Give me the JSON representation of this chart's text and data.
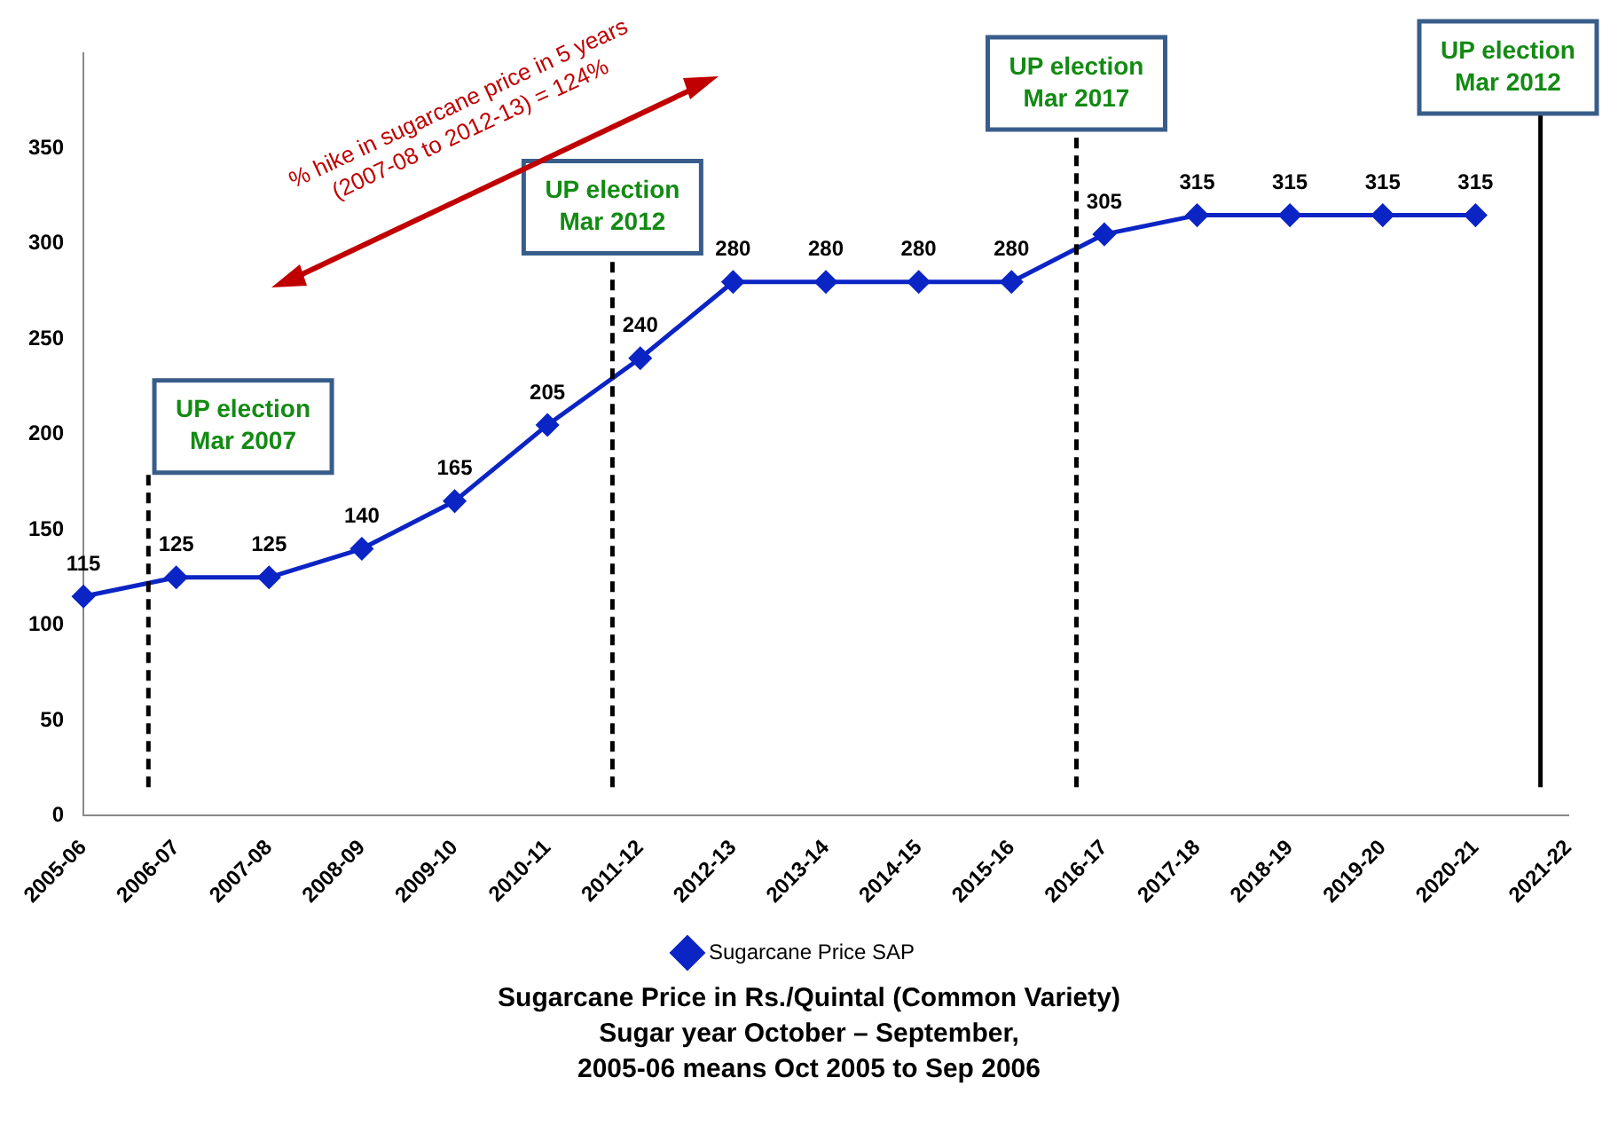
{
  "chart_data": {
    "type": "line",
    "categories": [
      "2005-06",
      "2006-07",
      "2007-08",
      "2008-09",
      "2009-10",
      "2010-11",
      "2011-12",
      "2012-13",
      "2013-14",
      "2014-15",
      "2015-16",
      "2016-17",
      "2017-18",
      "2018-19",
      "2019-20",
      "2020-21",
      "2021-22"
    ],
    "series": [
      {
        "name": "Sugarcane Price SAP",
        "color": "#0b24c4",
        "values": [
          115,
          125,
          125,
          140,
          165,
          205,
          240,
          280,
          280,
          280,
          280,
          305,
          315,
          315,
          315,
          315,
          null
        ]
      }
    ],
    "ylim": [
      0,
      400
    ],
    "yticks": [
      0,
      50,
      100,
      150,
      200,
      250,
      300,
      350
    ],
    "grid": false,
    "legend": "bottom",
    "marker": "diamond",
    "line_style": "solid",
    "data_labels": true,
    "ref_lines": [
      {
        "axis": "x",
        "value": "2006-07",
        "label": "UP election Mar 2007",
        "line_style": "dashed",
        "color": "#000000"
      },
      {
        "axis": "x",
        "value": "2011-12",
        "label": "UP election Mar 2012",
        "line_style": "dashed",
        "color": "#000000"
      },
      {
        "axis": "x",
        "value": "2016-17",
        "label": "UP election Mar 2017",
        "line_style": "dashed",
        "color": "#000000"
      },
      {
        "axis": "x",
        "value": "2021-22",
        "label": "UP election Mar 2012",
        "line_style": "solid",
        "color": "#000000"
      }
    ],
    "annotations": [
      "% hike in sugarcane price in 5 years (2007-08 to 2012-13) = 124%",
      "Sugarcane Price in Rs./Quintal (Common Variety)",
      "Sugar year October – September,",
      "2005-06 means Oct 2005 to Sep 2006"
    ]
  }
}
